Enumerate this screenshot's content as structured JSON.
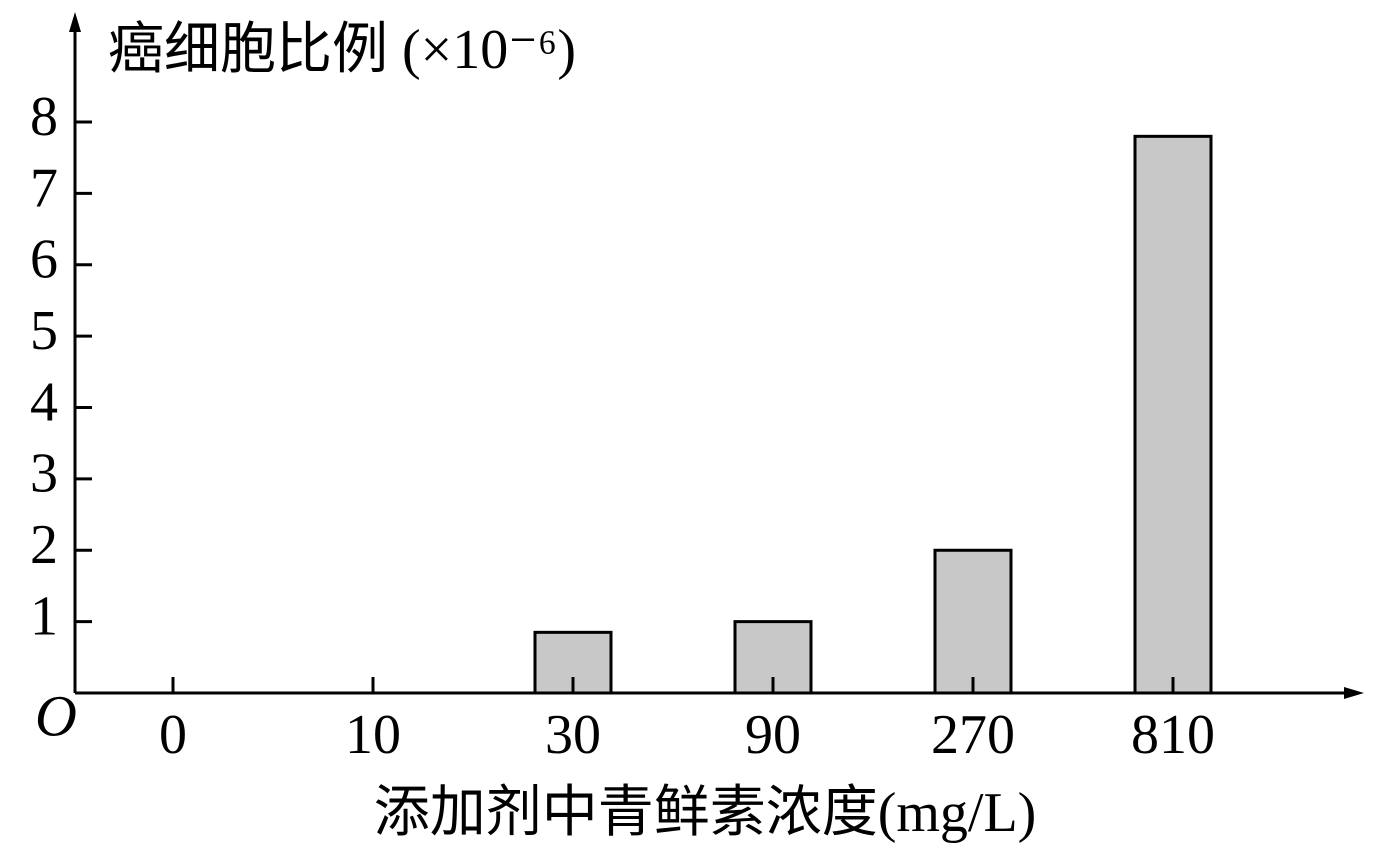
{
  "chart_data": {
    "type": "bar",
    "y_label": "癌细胞比例 (×10⁻⁶)",
    "x_label": "添加剂中青鲜素浓度(mg/L)",
    "origin_label": "O",
    "categories": [
      "0",
      "10",
      "30",
      "90",
      "270",
      "810"
    ],
    "values": [
      0,
      0,
      0.85,
      1,
      2,
      7.8
    ],
    "color": "#c8c8c8",
    "ylim": [
      0,
      9.5
    ],
    "yticks": [
      1,
      2,
      3,
      4,
      5,
      6,
      7,
      8
    ]
  }
}
